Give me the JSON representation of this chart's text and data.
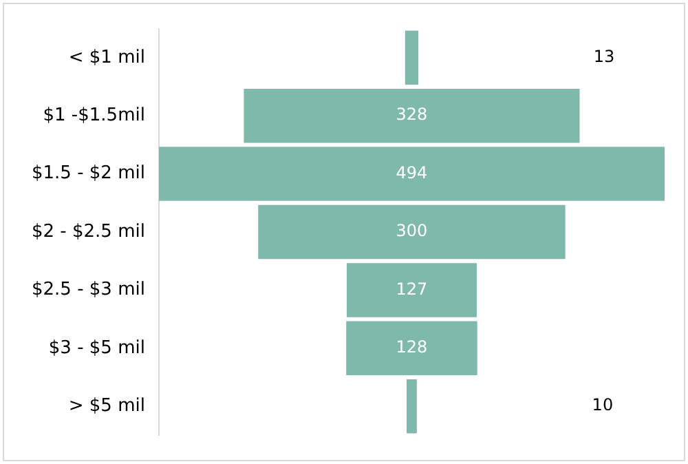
{
  "chart_data": {
    "type": "other",
    "categories": [
      "< $1 mil",
      "$1 -$1.5mil",
      "$1.5 - $2 mil",
      "$2 - $2.5 mil",
      "$2.5 - $3 mil",
      "$3 - $5 mil",
      "> $5 mil"
    ],
    "values": [
      13,
      328,
      494,
      300,
      127,
      128,
      10
    ],
    "color": "#7fb9ab",
    "data_labels": true
  }
}
